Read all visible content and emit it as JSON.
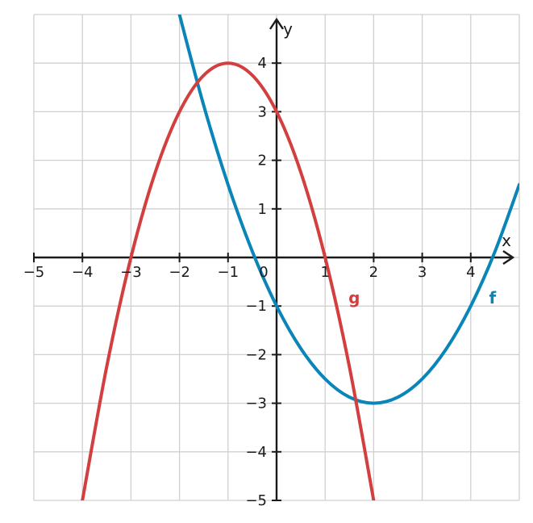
{
  "chart_data": {
    "type": "line",
    "title": "",
    "xlabel": "x",
    "ylabel": "y",
    "xlim": [
      -5,
      5
    ],
    "ylim": [
      -5,
      5
    ],
    "grid": true,
    "x_ticks": [
      -5,
      -4,
      -3,
      -2,
      -1,
      0,
      1,
      2,
      3,
      4
    ],
    "x_tick_labels": [
      "−5",
      "−4",
      "−3",
      "−2",
      "−1",
      "0",
      "1",
      "2",
      "3",
      "4"
    ],
    "y_ticks": [
      -5,
      -4,
      -3,
      -2,
      -1,
      1,
      2,
      3,
      4
    ],
    "y_tick_labels": [
      "−5",
      "−4",
      "−3",
      "−2",
      "−1",
      "1",
      "2",
      "3",
      "4"
    ],
    "series": [
      {
        "name": "f",
        "color": "#0a85b8",
        "formula": "0.5*(x-2)^2 - 3",
        "x": [
          -2.2,
          -2,
          -1.5,
          -1,
          -0.5,
          0,
          0.5,
          1,
          1.5,
          2,
          2.5,
          3,
          3.5,
          4,
          4.5,
          5
        ],
        "y": [
          5.82,
          5.0,
          3.125,
          1.5,
          0.125,
          -1.0,
          -1.875,
          -2.5,
          -2.875,
          -3.0,
          -2.875,
          -2.5,
          -1.875,
          -1.0,
          0.125,
          1.5
        ]
      },
      {
        "name": "g",
        "color": "#d33f3f",
        "formula": "-(x+1)^2 + 4",
        "x": [
          -4,
          -3.5,
          -3,
          -2.5,
          -2,
          -1.5,
          -1,
          -0.5,
          0,
          0.5,
          1,
          1.5,
          2
        ],
        "y": [
          -5.0,
          -2.25,
          0.0,
          1.75,
          3.0,
          3.75,
          4.0,
          3.75,
          3.0,
          1.75,
          0.0,
          -2.25,
          -5.0
        ]
      }
    ],
    "curve_labels": [
      {
        "text": "g",
        "series": "g",
        "x": 1.6,
        "y": -0.95
      },
      {
        "text": "f",
        "series": "f",
        "x": 4.45,
        "y": -0.95
      }
    ]
  }
}
